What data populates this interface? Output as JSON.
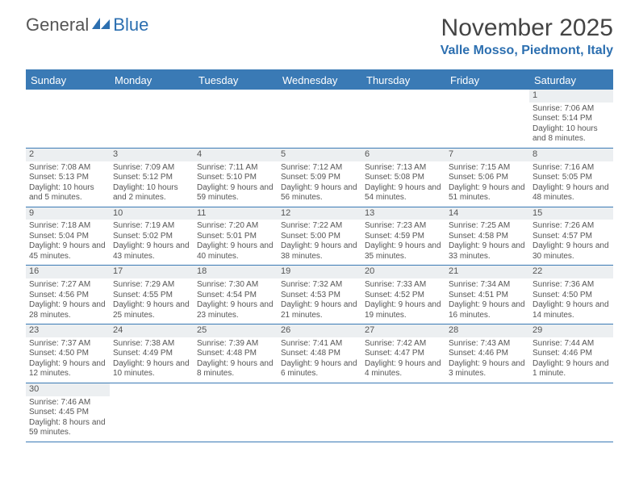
{
  "logo": {
    "text_a": "General",
    "text_b": "Blue"
  },
  "title": "November 2025",
  "location": "Valle Mosso, Piedmont, Italy",
  "colors": {
    "brand": "#3a7ab5",
    "logo_blue": "#2c6fb0",
    "daynum_bg": "#eceff1",
    "text": "#555555",
    "bg": "#ffffff"
  },
  "weekdays": [
    "Sunday",
    "Monday",
    "Tuesday",
    "Wednesday",
    "Thursday",
    "Friday",
    "Saturday"
  ],
  "weeks": [
    [
      null,
      null,
      null,
      null,
      null,
      null,
      {
        "n": "1",
        "sr": "7:06 AM",
        "ss": "5:14 PM",
        "dl": "10 hours and 8 minutes."
      }
    ],
    [
      {
        "n": "2",
        "sr": "7:08 AM",
        "ss": "5:13 PM",
        "dl": "10 hours and 5 minutes."
      },
      {
        "n": "3",
        "sr": "7:09 AM",
        "ss": "5:12 PM",
        "dl": "10 hours and 2 minutes."
      },
      {
        "n": "4",
        "sr": "7:11 AM",
        "ss": "5:10 PM",
        "dl": "9 hours and 59 minutes."
      },
      {
        "n": "5",
        "sr": "7:12 AM",
        "ss": "5:09 PM",
        "dl": "9 hours and 56 minutes."
      },
      {
        "n": "6",
        "sr": "7:13 AM",
        "ss": "5:08 PM",
        "dl": "9 hours and 54 minutes."
      },
      {
        "n": "7",
        "sr": "7:15 AM",
        "ss": "5:06 PM",
        "dl": "9 hours and 51 minutes."
      },
      {
        "n": "8",
        "sr": "7:16 AM",
        "ss": "5:05 PM",
        "dl": "9 hours and 48 minutes."
      }
    ],
    [
      {
        "n": "9",
        "sr": "7:18 AM",
        "ss": "5:04 PM",
        "dl": "9 hours and 45 minutes."
      },
      {
        "n": "10",
        "sr": "7:19 AM",
        "ss": "5:02 PM",
        "dl": "9 hours and 43 minutes."
      },
      {
        "n": "11",
        "sr": "7:20 AM",
        "ss": "5:01 PM",
        "dl": "9 hours and 40 minutes."
      },
      {
        "n": "12",
        "sr": "7:22 AM",
        "ss": "5:00 PM",
        "dl": "9 hours and 38 minutes."
      },
      {
        "n": "13",
        "sr": "7:23 AM",
        "ss": "4:59 PM",
        "dl": "9 hours and 35 minutes."
      },
      {
        "n": "14",
        "sr": "7:25 AM",
        "ss": "4:58 PM",
        "dl": "9 hours and 33 minutes."
      },
      {
        "n": "15",
        "sr": "7:26 AM",
        "ss": "4:57 PM",
        "dl": "9 hours and 30 minutes."
      }
    ],
    [
      {
        "n": "16",
        "sr": "7:27 AM",
        "ss": "4:56 PM",
        "dl": "9 hours and 28 minutes."
      },
      {
        "n": "17",
        "sr": "7:29 AM",
        "ss": "4:55 PM",
        "dl": "9 hours and 25 minutes."
      },
      {
        "n": "18",
        "sr": "7:30 AM",
        "ss": "4:54 PM",
        "dl": "9 hours and 23 minutes."
      },
      {
        "n": "19",
        "sr": "7:32 AM",
        "ss": "4:53 PM",
        "dl": "9 hours and 21 minutes."
      },
      {
        "n": "20",
        "sr": "7:33 AM",
        "ss": "4:52 PM",
        "dl": "9 hours and 19 minutes."
      },
      {
        "n": "21",
        "sr": "7:34 AM",
        "ss": "4:51 PM",
        "dl": "9 hours and 16 minutes."
      },
      {
        "n": "22",
        "sr": "7:36 AM",
        "ss": "4:50 PM",
        "dl": "9 hours and 14 minutes."
      }
    ],
    [
      {
        "n": "23",
        "sr": "7:37 AM",
        "ss": "4:50 PM",
        "dl": "9 hours and 12 minutes."
      },
      {
        "n": "24",
        "sr": "7:38 AM",
        "ss": "4:49 PM",
        "dl": "9 hours and 10 minutes."
      },
      {
        "n": "25",
        "sr": "7:39 AM",
        "ss": "4:48 PM",
        "dl": "9 hours and 8 minutes."
      },
      {
        "n": "26",
        "sr": "7:41 AM",
        "ss": "4:48 PM",
        "dl": "9 hours and 6 minutes."
      },
      {
        "n": "27",
        "sr": "7:42 AM",
        "ss": "4:47 PM",
        "dl": "9 hours and 4 minutes."
      },
      {
        "n": "28",
        "sr": "7:43 AM",
        "ss": "4:46 PM",
        "dl": "9 hours and 3 minutes."
      },
      {
        "n": "29",
        "sr": "7:44 AM",
        "ss": "4:46 PM",
        "dl": "9 hours and 1 minute."
      }
    ],
    [
      {
        "n": "30",
        "sr": "7:46 AM",
        "ss": "4:45 PM",
        "dl": "8 hours and 59 minutes."
      },
      null,
      null,
      null,
      null,
      null,
      null
    ]
  ],
  "labels": {
    "sunrise": "Sunrise:",
    "sunset": "Sunset:",
    "daylight": "Daylight:"
  }
}
